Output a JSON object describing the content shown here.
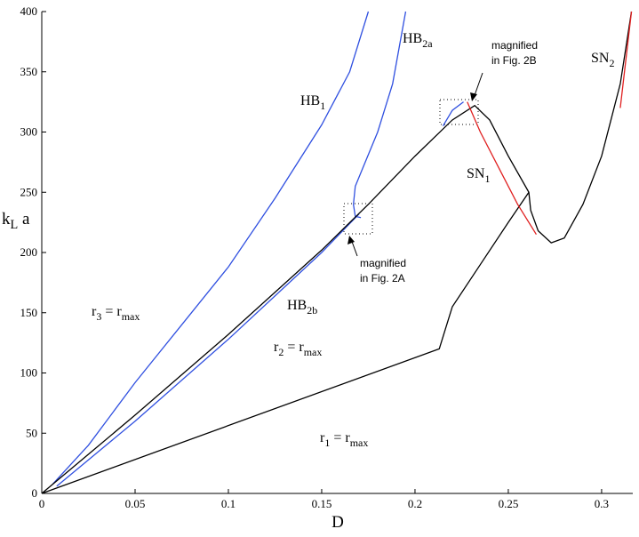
{
  "chart_data": {
    "type": "line",
    "x_label": "D",
    "y_label": [
      {
        "text": "k"
      },
      {
        "sub": "L"
      },
      {
        "text": " a"
      }
    ],
    "xlim": [
      0,
      0.3167
    ],
    "ylim": [
      0,
      400
    ],
    "xticks": [
      0,
      0.05,
      0.1,
      0.15,
      0.2,
      0.25,
      0.3
    ],
    "yticks": [
      0,
      50,
      100,
      150,
      200,
      250,
      300,
      350,
      400
    ],
    "series": [
      {
        "color": "#3050e0",
        "x": [
          0.006,
          0.025,
          0.05,
          0.075,
          0.1,
          0.125,
          0.15,
          0.165,
          0.175
        ],
        "values": [
          8,
          40,
          92,
          140,
          188,
          245,
          306,
          350,
          400
        ]
      },
      {
        "color": "#3050e0",
        "x": [
          0.171,
          0.168,
          0.167,
          0.168,
          0.172,
          0.18,
          0.188,
          0.195
        ],
        "values": [
          229,
          230,
          240,
          255,
          270,
          300,
          340,
          400
        ]
      },
      {
        "color": "#3050e0",
        "x": [
          0.215,
          0.22,
          0.226
        ],
        "values": [
          305,
          318,
          325
        ]
      },
      {
        "color": "#3050e0",
        "x": [
          0.008,
          0.05,
          0.1,
          0.15,
          0.17
        ],
        "values": [
          6,
          60,
          128,
          200,
          232
        ]
      },
      {
        "color": "#000000",
        "x": [
          0,
          0.05,
          0.1,
          0.15,
          0.175,
          0.2,
          0.22,
          0.232,
          0.24,
          0.25,
          0.261,
          0.262,
          0.266,
          0.273,
          0.28,
          0.29,
          0.3,
          0.31,
          0.316
        ],
        "values": [
          0,
          65,
          132,
          202,
          240,
          280,
          310,
          322,
          310,
          280,
          250,
          235,
          218,
          208,
          212,
          240,
          280,
          340,
          400
        ]
      },
      {
        "color": "#000000",
        "x": [
          0,
          0.213,
          0.216,
          0.22,
          0.235,
          0.25,
          0.261
        ],
        "values": [
          0,
          120,
          135,
          155,
          190,
          225,
          250
        ]
      },
      {
        "color": "#e02020",
        "x": [
          0.228,
          0.235,
          0.245,
          0.255,
          0.265
        ],
        "values": [
          325,
          300,
          270,
          240,
          215
        ]
      },
      {
        "color": "#e02020",
        "x": [
          0.31,
          0.313,
          0.316
        ],
        "values": [
          320,
          360,
          400
        ]
      }
    ],
    "annotations": [
      {
        "parts": [
          {
            "text": "HB"
          },
          {
            "sub": "1"
          }
        ]
      },
      {
        "parts": [
          {
            "text": "HB"
          },
          {
            "sub": "2a"
          }
        ]
      },
      {
        "parts": [
          {
            "text": "HB"
          },
          {
            "sub": "2b"
          }
        ]
      },
      {
        "parts": [
          {
            "text": "SN"
          },
          {
            "sub": "1"
          }
        ]
      },
      {
        "parts": [
          {
            "text": "SN"
          },
          {
            "sub": "2"
          }
        ]
      },
      {
        "parts": [
          {
            "text": "r"
          },
          {
            "sub": "3"
          },
          {
            "text": " = r"
          },
          {
            "sub": "max"
          }
        ]
      },
      {
        "parts": [
          {
            "text": "r"
          },
          {
            "sub": "2"
          },
          {
            "text": " = r"
          },
          {
            "sub": "max"
          }
        ]
      },
      {
        "parts": [
          {
            "text": "r"
          },
          {
            "sub": "1"
          },
          {
            "text": " = r"
          },
          {
            "sub": "max"
          }
        ]
      },
      {
        "lines": [
          "magnified",
          "in Fig. 2A"
        ]
      },
      {
        "lines": [
          "magnified",
          "in Fig. 2B"
        ]
      }
    ]
  }
}
